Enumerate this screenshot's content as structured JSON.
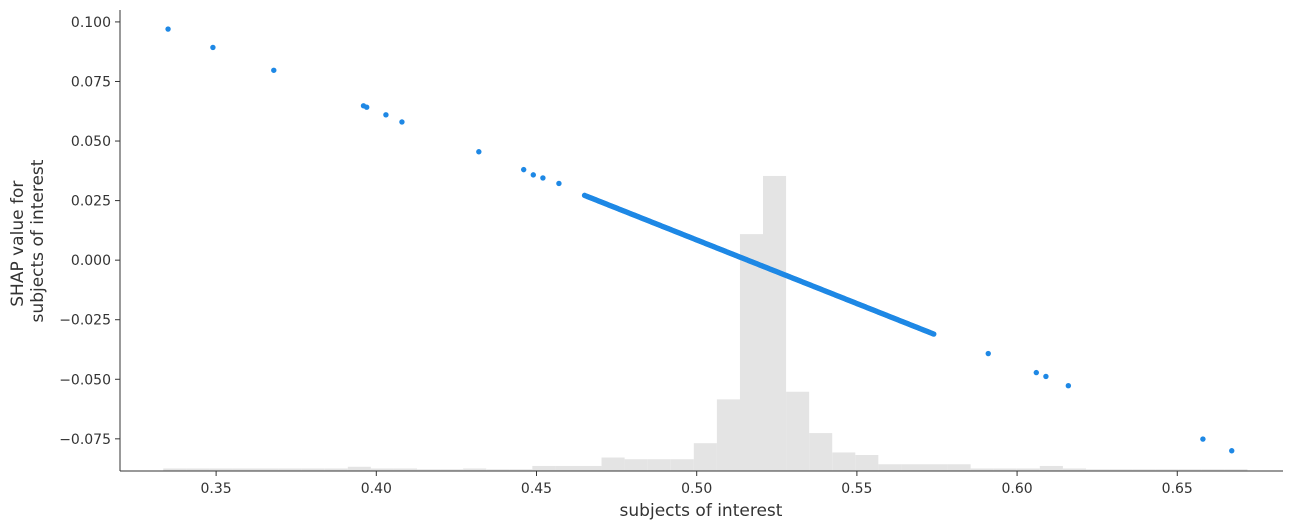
{
  "chart_data": {
    "type": "scatter",
    "title": "",
    "xlabel": "subjects of interest",
    "ylabel_lines": [
      "SHAP value for",
      "subjects of interest"
    ],
    "xlim": [
      0.32,
      0.683
    ],
    "ylim": [
      -0.0885,
      0.105
    ],
    "x_ticks": [
      0.35,
      0.4,
      0.45,
      0.5,
      0.55,
      0.6,
      0.65
    ],
    "x_tick_labels": [
      "0.35",
      "0.40",
      "0.45",
      "0.50",
      "0.55",
      "0.60",
      "0.65"
    ],
    "y_ticks": [
      0.1,
      0.075,
      0.05,
      0.025,
      0.0,
      -0.025,
      -0.05,
      -0.075
    ],
    "y_tick_labels": [
      "0.100",
      "0.075",
      "0.050",
      "0.025",
      "0.000",
      "−0.025",
      "−0.050",
      "−0.075"
    ],
    "grid": false,
    "legend": "none",
    "point_color": "#1E88E5",
    "histogram_color": "#e4e4e4",
    "regression": {
      "slope": -0.534,
      "intercept": 0.2755,
      "x_from": 0.465,
      "x_to": 0.574
    },
    "points": [
      {
        "x": 0.335,
        "y": 0.097
      },
      {
        "x": 0.349,
        "y": 0.0893
      },
      {
        "x": 0.368,
        "y": 0.0797
      },
      {
        "x": 0.396,
        "y": 0.0648
      },
      {
        "x": 0.397,
        "y": 0.0642
      },
      {
        "x": 0.403,
        "y": 0.061
      },
      {
        "x": 0.408,
        "y": 0.058
      },
      {
        "x": 0.432,
        "y": 0.0455
      },
      {
        "x": 0.446,
        "y": 0.038
      },
      {
        "x": 0.449,
        "y": 0.0358
      },
      {
        "x": 0.452,
        "y": 0.0345
      },
      {
        "x": 0.457,
        "y": 0.0322
      },
      {
        "x": 0.591,
        "y": -0.0392
      },
      {
        "x": 0.606,
        "y": -0.0472
      },
      {
        "x": 0.609,
        "y": -0.0488
      },
      {
        "x": 0.616,
        "y": -0.0527
      },
      {
        "x": 0.658,
        "y": -0.0751
      },
      {
        "x": 0.667,
        "y": -0.08
      }
    ],
    "histogram": {
      "bin_edges": [
        0.3335,
        0.3407,
        0.3479,
        0.3551,
        0.3623,
        0.3695,
        0.3767,
        0.3839,
        0.3911,
        0.3983,
        0.4055,
        0.4127,
        0.4199,
        0.4271,
        0.4343,
        0.4415,
        0.4487,
        0.4559,
        0.4631,
        0.4703,
        0.4775,
        0.4847,
        0.4919,
        0.4991,
        0.5063,
        0.5135,
        0.5207,
        0.5279,
        0.5351,
        0.5423,
        0.5495,
        0.5567,
        0.5639,
        0.5711,
        0.5783,
        0.5855,
        0.5927,
        0.5999,
        0.6071,
        0.6143,
        0.6215,
        0.6287,
        0.6359,
        0.6431,
        0.6503,
        0.6575,
        0.6647,
        0.6719
      ],
      "heights": [
        0.0003,
        0.0003,
        0.0003,
        0.0003,
        0.0003,
        0.0003,
        0.0003,
        0.0003,
        0.0005,
        0.0003,
        0.0003,
        0.0002,
        0.0002,
        0.0003,
        0.0002,
        0.0002,
        0.0006,
        0.0006,
        0.0006,
        0.0016,
        0.0014,
        0.0014,
        0.0014,
        0.0033,
        0.0085,
        0.0281,
        0.1242,
        0.0094,
        0.0045,
        0.0022,
        0.0019,
        0.0008,
        0.0008,
        0.0008,
        0.0008,
        0.0003,
        0.0003,
        0.0003,
        0.0006,
        0.0003,
        0.0002,
        0.0002,
        0.0002,
        0.0002,
        0.0002,
        0.0002,
        0.0002
      ],
      "visible_max": 0.035
    }
  }
}
